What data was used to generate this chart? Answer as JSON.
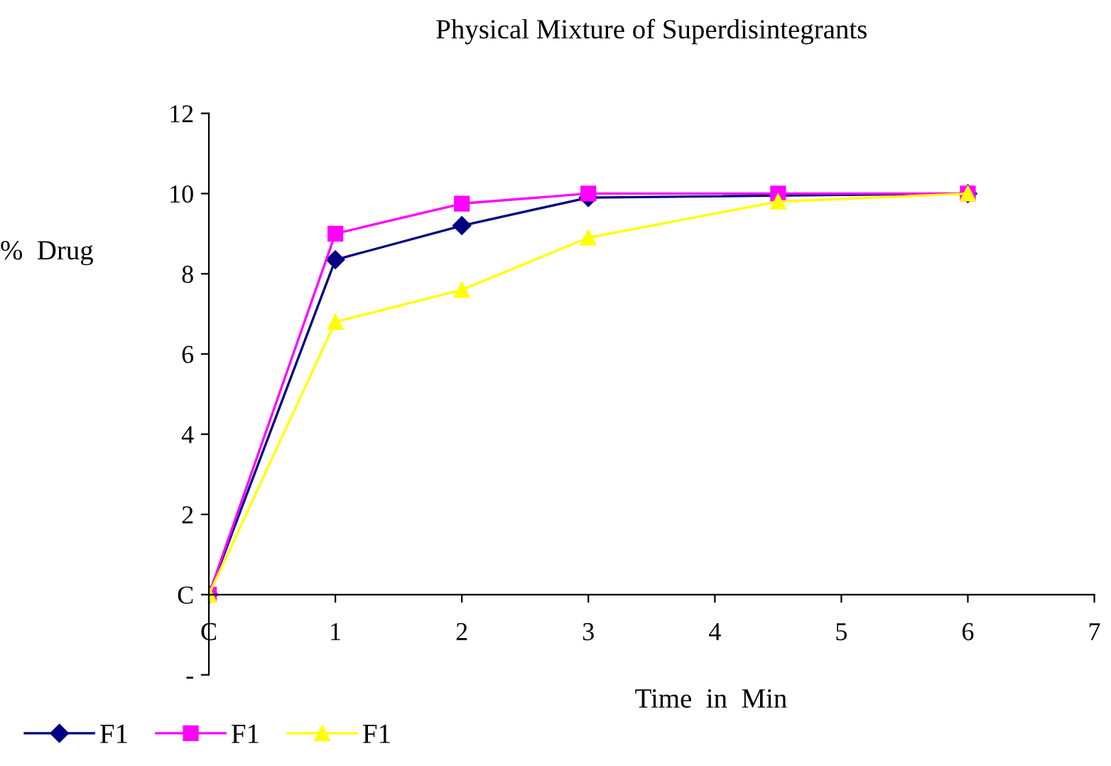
{
  "chart_data": {
    "type": "line",
    "title": "Physical Mixture of Superdisintegrants",
    "xlabel": "Time  in  Min",
    "ylabel": "%  Drug",
    "x": [
      0,
      1,
      2,
      3,
      4.5,
      6
    ],
    "series": [
      {
        "name": "F1",
        "color": "#000080",
        "marker": "diamond",
        "values": [
          0,
          8.35,
          9.2,
          9.9,
          null,
          10.0
        ]
      },
      {
        "name": "F1",
        "color": "#ff00ff",
        "marker": "square",
        "values": [
          0,
          9.0,
          9.75,
          10.0,
          10.0,
          10.0
        ]
      },
      {
        "name": "F1",
        "color": "#ffff00",
        "marker": "triangle",
        "values": [
          0,
          6.8,
          7.6,
          8.9,
          9.8,
          10.0
        ]
      }
    ],
    "xlim": [
      0,
      7
    ],
    "xticks": [
      {
        "value": 0,
        "label": "C"
      },
      1,
      2,
      3,
      4,
      5,
      6,
      7
    ],
    "ylim": [
      -2,
      12
    ],
    "yticks": [
      {
        "value": -2,
        "label": "-"
      },
      {
        "value": 0,
        "label": "C"
      },
      2,
      4,
      6,
      8,
      10,
      12
    ],
    "grid": false,
    "legend": "bottom left",
    "line_style": "solid"
  }
}
